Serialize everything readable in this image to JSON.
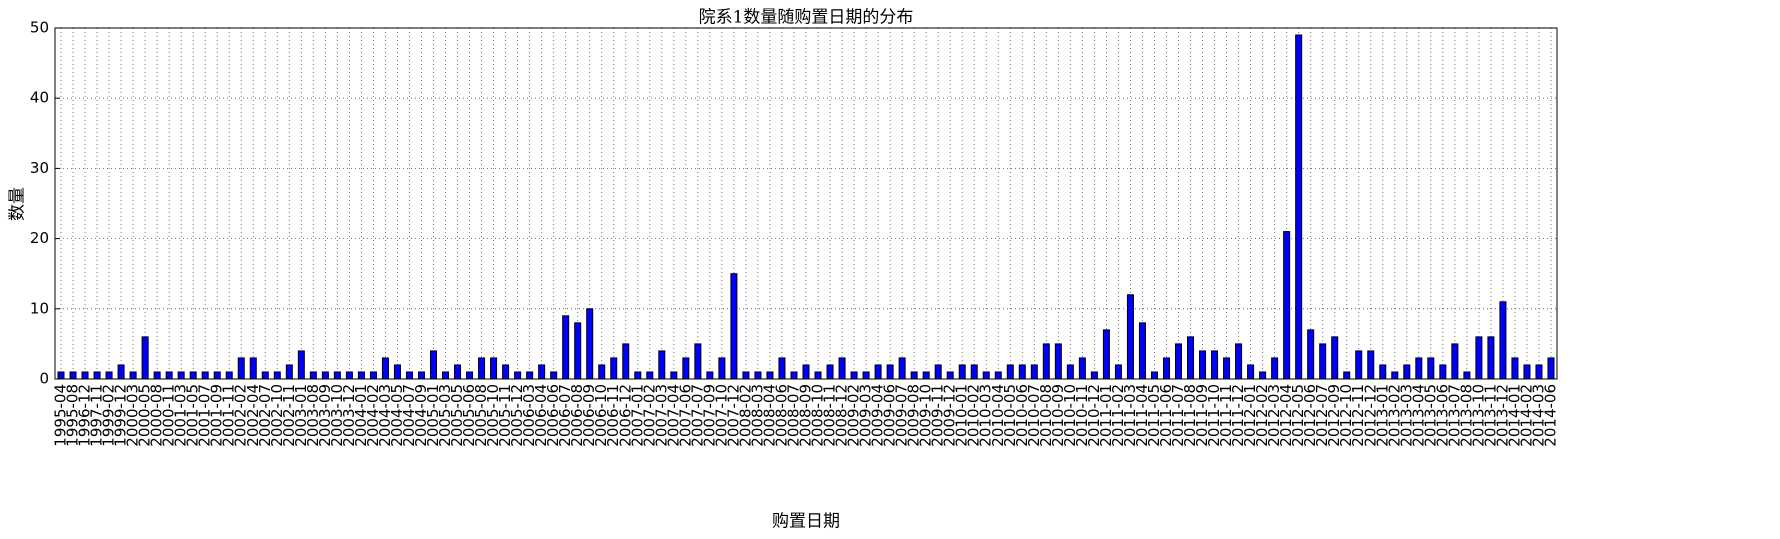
{
  "chart_data": {
    "type": "bar",
    "title": "院系1数量随购置日期的分布",
    "x_label": "购置日期",
    "y_label": "数量",
    "categories": [
      "1995-04",
      "1995-08",
      "1996-12",
      "1997-11",
      "1999-02",
      "1999-12",
      "2000-03",
      "2000-05",
      "2000-08",
      "2000-11",
      "2001-03",
      "2001-05",
      "2001-07",
      "2001-09",
      "2001-11",
      "2002-02",
      "2002-04",
      "2002-07",
      "2002-10",
      "2002-11",
      "2003-01",
      "2003-08",
      "2003-09",
      "2003-10",
      "2003-12",
      "2004-01",
      "2004-02",
      "2004-03",
      "2004-05",
      "2004-07",
      "2004-09",
      "2005-01",
      "2005-03",
      "2005-05",
      "2005-06",
      "2005-08",
      "2005-10",
      "2005-11",
      "2005-12",
      "2006-03",
      "2006-04",
      "2006-06",
      "2006-07",
      "2006-08",
      "2006-09",
      "2006-10",
      "2006-11",
      "2006-12",
      "2007-01",
      "2007-02",
      "2007-03",
      "2007-04",
      "2007-06",
      "2007-07",
      "2007-09",
      "2007-10",
      "2007-12",
      "2008-02",
      "2008-03",
      "2008-04",
      "2008-06",
      "2008-07",
      "2008-09",
      "2008-10",
      "2008-11",
      "2008-12",
      "2009-02",
      "2009-03",
      "2009-04",
      "2009-06",
      "2009-07",
      "2009-08",
      "2009-10",
      "2009-11",
      "2009-12",
      "2010-01",
      "2010-02",
      "2010-03",
      "2010-04",
      "2010-05",
      "2010-06",
      "2010-07",
      "2010-08",
      "2010-09",
      "2010-10",
      "2010-11",
      "2010-12",
      "2011-01",
      "2011-02",
      "2011-03",
      "2011-04",
      "2011-05",
      "2011-06",
      "2011-07",
      "2011-08",
      "2011-09",
      "2011-10",
      "2011-11",
      "2011-12",
      "2012-01",
      "2012-02",
      "2012-03",
      "2012-04",
      "2012-05",
      "2012-06",
      "2012-07",
      "2012-09",
      "2012-10",
      "2012-11",
      "2012-12",
      "2013-01",
      "2013-02",
      "2013-03",
      "2013-04",
      "2013-05",
      "2013-06",
      "2013-07",
      "2013-08",
      "2013-10",
      "2013-11",
      "2013-12",
      "2014-01",
      "2014-02",
      "2014-03",
      "2014-06"
    ],
    "values": [
      1,
      1,
      1,
      1,
      1,
      2,
      1,
      6,
      1,
      1,
      1,
      1,
      1,
      1,
      1,
      3,
      3,
      1,
      1,
      2,
      4,
      1,
      1,
      1,
      1,
      1,
      1,
      3,
      2,
      1,
      1,
      4,
      1,
      2,
      1,
      3,
      3,
      2,
      1,
      1,
      2,
      1,
      9,
      8,
      10,
      2,
      3,
      5,
      1,
      1,
      4,
      1,
      3,
      5,
      1,
      3,
      15,
      1,
      1,
      1,
      3,
      1,
      2,
      1,
      2,
      3,
      1,
      1,
      2,
      2,
      3,
      1,
      1,
      2,
      1,
      2,
      2,
      1,
      1,
      2,
      2,
      2,
      5,
      5,
      2,
      3,
      1,
      7,
      2,
      12,
      8,
      1,
      3,
      5,
      6,
      4,
      4,
      3,
      5,
      2,
      1,
      3,
      21,
      49,
      7,
      5,
      6,
      1,
      4,
      4,
      2,
      1,
      2,
      3,
      3,
      2,
      5,
      1,
      6,
      6,
      11,
      3,
      2,
      2,
      3
    ],
    "color": "#0000ff",
    "ylim": [
      0,
      50
    ],
    "yticks": [
      0,
      10,
      20,
      30,
      40,
      50
    ],
    "grid": true
  }
}
